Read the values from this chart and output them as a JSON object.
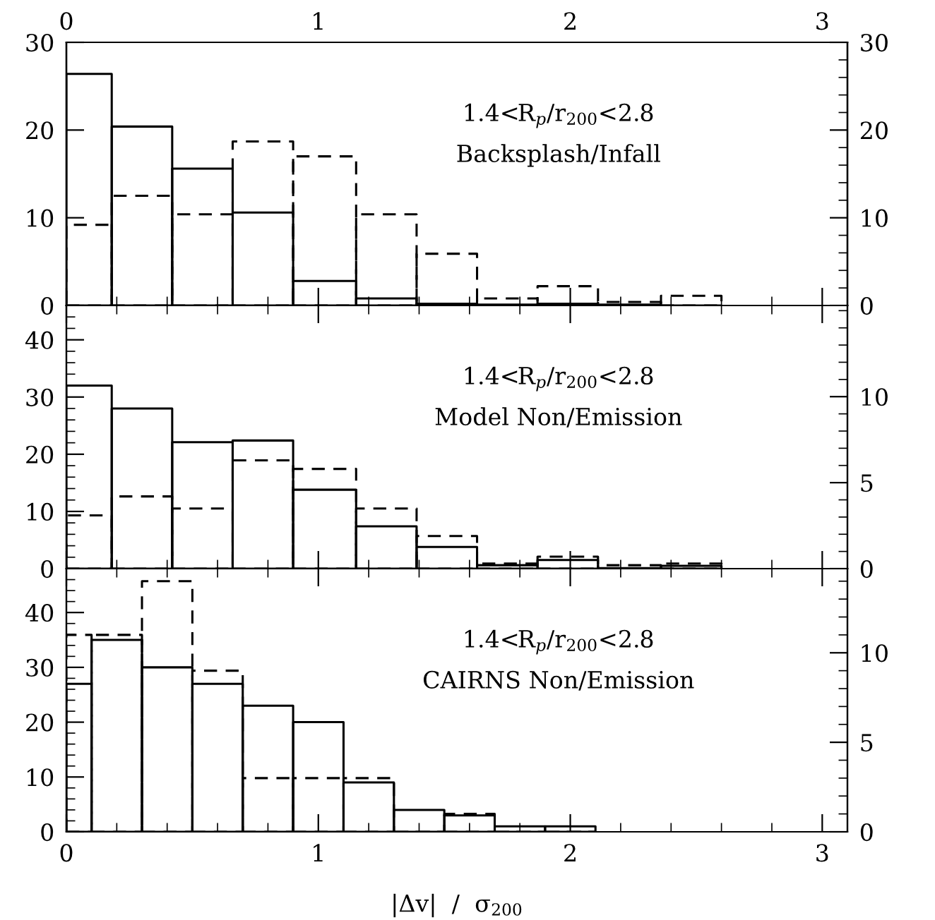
{
  "chart_data": [
    {
      "type": "histogram",
      "annotations": [
        "1.4<R$_{p}$/r$_{200}$<2.8",
        "Backsplash/Infall"
      ],
      "bins": [
        0,
        0.18,
        0.42,
        0.66,
        0.9,
        1.15,
        1.39,
        1.63,
        1.87,
        2.11,
        2.36,
        2.6
      ],
      "series": [
        {
          "color": "#000000",
          "line_style": "solid",
          "values": [
            26.4,
            20.4,
            15.6,
            10.6,
            2.8,
            0.8,
            0.2,
            0.1,
            0.2,
            0.1,
            0
          ]
        },
        {
          "color": "#000000",
          "line_style": "dashed",
          "values": [
            9.2,
            12.5,
            10.4,
            18.7,
            17.0,
            10.4,
            5.9,
            0.8,
            2.2,
            0.4,
            1.1
          ]
        }
      ],
      "xlim": [
        0,
        3.1
      ],
      "xticks": [
        {
          "value": 0,
          "label": null
        },
        {
          "value": 1,
          "label": null
        },
        {
          "value": 2,
          "label": null
        },
        {
          "value": 3,
          "label": null
        }
      ],
      "x2lim": [
        0,
        3.1
      ],
      "x2ticks": [
        0,
        1,
        2,
        3
      ],
      "ylim": [
        0,
        30
      ],
      "yticks": [
        0,
        10,
        20,
        30
      ],
      "y2lim": [
        0,
        30
      ],
      "y2ticks": [
        0,
        10,
        20,
        30
      ],
      "tick_labels": "y"
    },
    {
      "type": "histogram",
      "annotations": [
        "1.4<R$_{p}$/r$_{200}$<2.8",
        "Model Non/Emission"
      ],
      "bins": [
        0,
        0.18,
        0.42,
        0.66,
        0.9,
        1.15,
        1.39,
        1.63,
        1.87,
        2.11,
        2.36,
        2.6
      ],
      "series": [
        {
          "color": "#000000",
          "line_style": "solid",
          "values": [
            32,
            28,
            22.1,
            22.4,
            13.8,
            7.4,
            3.8,
            0.6,
            1.5,
            0.1,
            0.5
          ]
        },
        {
          "color": "#000000",
          "line_style": "dashed",
          "axis": "y2",
          "values": [
            3.1,
            4.2,
            3.5,
            6.3,
            5.8,
            3.5,
            1.9,
            0.3,
            0.7,
            0.2,
            0.3
          ]
        }
      ],
      "xlim": [
        0,
        3.1
      ],
      "xticks": [
        {
          "value": 0,
          "label": null
        },
        {
          "value": 1,
          "label": null
        },
        {
          "value": 2,
          "label": null
        },
        {
          "value": 3,
          "label": null
        }
      ],
      "ylim": [
        0,
        46
      ],
      "yticks": [
        0,
        10,
        20,
        30,
        40
      ],
      "y2lim": [
        0,
        15.3
      ],
      "y2ticks": [
        0,
        5,
        10
      ],
      "tick_labels": "y"
    },
    {
      "type": "histogram",
      "annotations": [
        "1.4<R$_{p}$/r$_{200}$<2.8",
        "CAIRNS Non/Emission"
      ],
      "xlabel": "|Δv|  /  σ$_{200}$",
      "bins": [
        0,
        0.1,
        0.3,
        0.5,
        0.7,
        0.9,
        1.1,
        1.3,
        1.5,
        1.7,
        1.9,
        2.1
      ],
      "series": [
        {
          "color": "#000000",
          "line_style": "solid",
          "values": [
            27,
            35,
            30,
            27,
            23,
            20,
            9,
            4,
            3,
            1,
            1
          ]
        },
        {
          "color": "#000000",
          "line_style": "dashed",
          "axis": "y2",
          "values": [
            11,
            11,
            14,
            9,
            3,
            3,
            3,
            0,
            1,
            0,
            0
          ]
        }
      ],
      "xlim": [
        0,
        3.1
      ],
      "xticks": [
        0,
        1,
        2,
        3
      ],
      "ylim": [
        0,
        48
      ],
      "yticks": [
        0,
        10,
        20,
        30,
        40
      ],
      "y2lim": [
        0,
        14.7
      ],
      "y2ticks": [
        0,
        5,
        10
      ]
    }
  ]
}
